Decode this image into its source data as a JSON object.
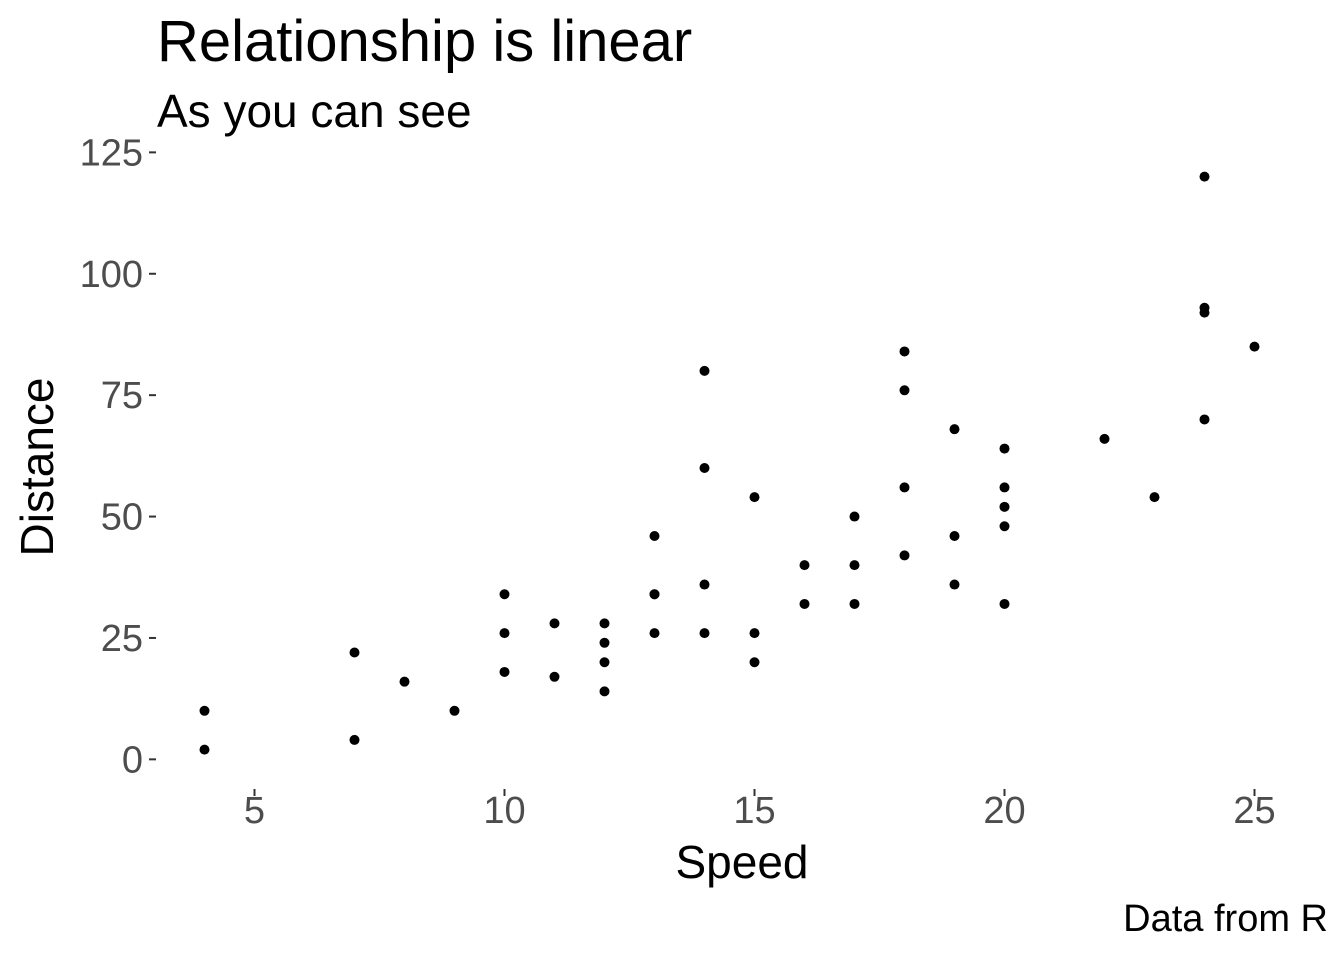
{
  "chart_data": {
    "type": "scatter",
    "title": "Relationship is linear",
    "subtitle": "As you can see",
    "caption": "Data from R",
    "xlabel": "Speed",
    "ylabel": "Distance",
    "xlim": [
      3.05,
      25.95
    ],
    "ylim": [
      -5.9,
      125.9
    ],
    "xticks": [
      5,
      10,
      15,
      20,
      25
    ],
    "yticks": [
      0,
      25,
      50,
      75,
      100,
      125
    ],
    "grid": false,
    "point_color": "#000000",
    "points": [
      [
        4,
        2
      ],
      [
        4,
        10
      ],
      [
        7,
        4
      ],
      [
        7,
        22
      ],
      [
        8,
        16
      ],
      [
        9,
        10
      ],
      [
        10,
        18
      ],
      [
        10,
        26
      ],
      [
        10,
        34
      ],
      [
        11,
        17
      ],
      [
        11,
        28
      ],
      [
        12,
        14
      ],
      [
        12,
        20
      ],
      [
        12,
        24
      ],
      [
        12,
        28
      ],
      [
        13,
        26
      ],
      [
        13,
        34
      ],
      [
        13,
        34
      ],
      [
        13,
        46
      ],
      [
        14,
        26
      ],
      [
        14,
        36
      ],
      [
        14,
        60
      ],
      [
        14,
        80
      ],
      [
        15,
        20
      ],
      [
        15,
        26
      ],
      [
        15,
        54
      ],
      [
        16,
        32
      ],
      [
        16,
        40
      ],
      [
        17,
        32
      ],
      [
        17,
        40
      ],
      [
        17,
        50
      ],
      [
        18,
        42
      ],
      [
        18,
        56
      ],
      [
        18,
        76
      ],
      [
        18,
        84
      ],
      [
        19,
        36
      ],
      [
        19,
        46
      ],
      [
        19,
        68
      ],
      [
        20,
        32
      ],
      [
        20,
        48
      ],
      [
        20,
        52
      ],
      [
        20,
        56
      ],
      [
        20,
        64
      ],
      [
        22,
        66
      ],
      [
        23,
        54
      ],
      [
        24,
        70
      ],
      [
        24,
        92
      ],
      [
        24,
        93
      ],
      [
        24,
        120
      ],
      [
        25,
        85
      ]
    ]
  }
}
